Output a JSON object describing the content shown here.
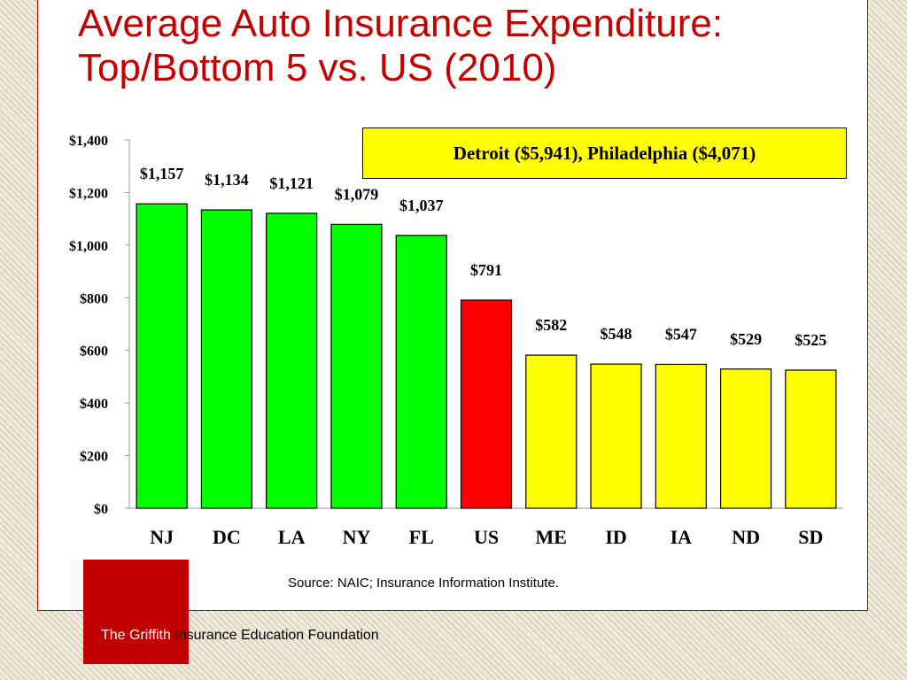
{
  "slide": {
    "title": "Average Auto Insurance Expenditure:\nTop/Bottom 5 vs. US (2010)",
    "callout": "Detroit ($5,941), Philadelphia ($4,071)",
    "source": "Source:  NAIC; Insurance Information Institute.",
    "footer": {
      "brand_part1": "The Griffith",
      "brand_part2": " Insurance Education Foundation"
    }
  },
  "colors": {
    "title": "#c40000",
    "top5": "#00ff00",
    "us": "#ff0000",
    "bottom5": "#ffff00"
  },
  "chart_data": {
    "type": "bar",
    "title": "Average Auto Insurance Expenditure: Top/Bottom 5 vs. US (2010)",
    "categories": [
      "NJ",
      "DC",
      "LA",
      "NY",
      "FL",
      "US",
      "ME",
      "ID",
      "IA",
      "ND",
      "SD"
    ],
    "values": [
      1157,
      1134,
      1121,
      1079,
      1037,
      791,
      582,
      548,
      547,
      529,
      525
    ],
    "value_labels": [
      "$1,157",
      "$1,134",
      "$1,121",
      "$1,079",
      "$1,037",
      "$791",
      "$582",
      "$548",
      "$547",
      "$529",
      "$525"
    ],
    "bar_colors": [
      "#00ff00",
      "#00ff00",
      "#00ff00",
      "#00ff00",
      "#00ff00",
      "#ff0000",
      "#ffff00",
      "#ffff00",
      "#ffff00",
      "#ffff00",
      "#ffff00"
    ],
    "yticks": [
      0,
      200,
      400,
      600,
      800,
      1000,
      1200,
      1400
    ],
    "ytick_labels": [
      "$0",
      "$200",
      "$400",
      "$600",
      "$800",
      "$1,000",
      "$1,200",
      "$1,400"
    ],
    "ylim": [
      0,
      1400
    ],
    "xlabel": "",
    "ylabel": "",
    "grid": false,
    "legend": "none"
  }
}
